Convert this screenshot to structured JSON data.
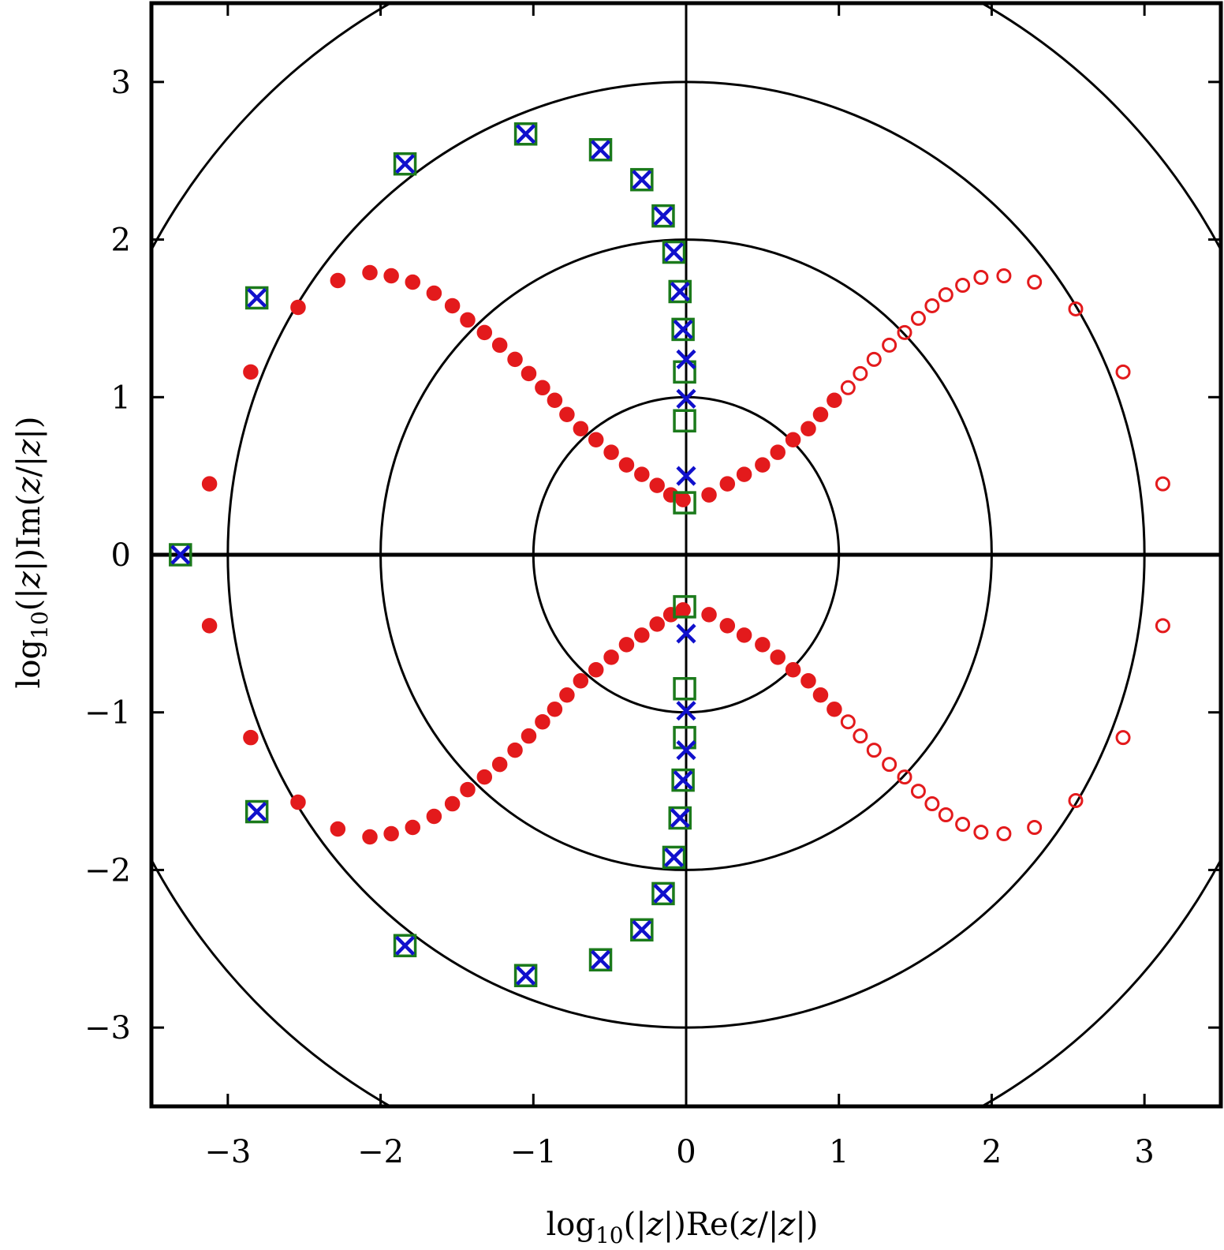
{
  "chart_data": {
    "type": "scatter",
    "title": "",
    "xlabel": "log10(|z|)Re(z/|z|)",
    "ylabel": "log10(|z|)Im(z/|z|)",
    "xlim": [
      -3.5,
      3.5
    ],
    "ylim": [
      -3.5,
      3.5
    ],
    "xticks": [
      -3,
      -2,
      -1,
      0,
      1,
      2,
      3
    ],
    "yticks": [
      -3,
      -2,
      -1,
      0,
      1,
      2,
      3
    ],
    "xtick_labels": [
      "−3",
      "−2",
      "−1",
      "0",
      "1",
      "2",
      "3"
    ],
    "ytick_labels": [
      "−3",
      "−2",
      "−1",
      "0",
      "1",
      "2",
      "3"
    ],
    "grid": false,
    "reference_circles": [
      1,
      2,
      3,
      4
    ],
    "colors": {
      "filled_circles": "#e31a1c",
      "open_circles": "#e31a1c",
      "squares": "#1b7a1b",
      "crosses": "#1010cc",
      "axes": "#000000"
    },
    "series": [
      {
        "marker": "filled-circle",
        "color": "#e31a1c",
        "points": [
          [
            -3.12,
            0.45
          ],
          [
            -2.85,
            1.16
          ],
          [
            -2.54,
            1.57
          ],
          [
            -2.28,
            1.74
          ],
          [
            -2.07,
            1.79
          ],
          [
            -1.93,
            1.77
          ],
          [
            -1.79,
            1.73
          ],
          [
            -1.65,
            1.66
          ],
          [
            -1.53,
            1.58
          ],
          [
            -1.43,
            1.49
          ],
          [
            -1.32,
            1.41
          ],
          [
            -1.22,
            1.33
          ],
          [
            -1.12,
            1.24
          ],
          [
            -1.03,
            1.15
          ],
          [
            -0.94,
            1.06
          ],
          [
            -0.86,
            0.98
          ],
          [
            -0.78,
            0.89
          ],
          [
            -0.69,
            0.8
          ],
          [
            -0.59,
            0.73
          ],
          [
            -0.49,
            0.65
          ],
          [
            -0.39,
            0.57
          ],
          [
            -0.29,
            0.51
          ],
          [
            -0.19,
            0.44
          ],
          [
            -0.1,
            0.38
          ],
          [
            -0.02,
            0.35
          ],
          [
            0.15,
            0.38
          ],
          [
            0.27,
            0.45
          ],
          [
            0.38,
            0.51
          ],
          [
            0.5,
            0.57
          ],
          [
            0.6,
            0.65
          ],
          [
            0.7,
            0.73
          ],
          [
            0.8,
            0.8
          ],
          [
            0.88,
            0.89
          ],
          [
            0.97,
            0.98
          ],
          [
            -3.12,
            -0.45
          ],
          [
            -2.85,
            -1.16
          ],
          [
            -2.54,
            -1.57
          ],
          [
            -2.28,
            -1.74
          ],
          [
            -2.07,
            -1.79
          ],
          [
            -1.93,
            -1.77
          ],
          [
            -1.79,
            -1.73
          ],
          [
            -1.65,
            -1.66
          ],
          [
            -1.53,
            -1.58
          ],
          [
            -1.43,
            -1.49
          ],
          [
            -1.32,
            -1.41
          ],
          [
            -1.22,
            -1.33
          ],
          [
            -1.12,
            -1.24
          ],
          [
            -1.03,
            -1.15
          ],
          [
            -0.94,
            -1.06
          ],
          [
            -0.86,
            -0.98
          ],
          [
            -0.78,
            -0.89
          ],
          [
            -0.69,
            -0.8
          ],
          [
            -0.59,
            -0.73
          ],
          [
            -0.49,
            -0.65
          ],
          [
            -0.39,
            -0.57
          ],
          [
            -0.29,
            -0.51
          ],
          [
            -0.19,
            -0.44
          ],
          [
            -0.1,
            -0.38
          ],
          [
            -0.02,
            -0.35
          ],
          [
            0.15,
            -0.38
          ],
          [
            0.27,
            -0.45
          ],
          [
            0.38,
            -0.51
          ],
          [
            0.5,
            -0.57
          ],
          [
            0.6,
            -0.65
          ],
          [
            0.7,
            -0.73
          ],
          [
            0.8,
            -0.8
          ],
          [
            0.88,
            -0.89
          ],
          [
            0.97,
            -0.98
          ]
        ]
      },
      {
        "marker": "open-circle",
        "color": "#e31a1c",
        "points": [
          [
            1.06,
            1.06
          ],
          [
            1.14,
            1.15
          ],
          [
            1.23,
            1.24
          ],
          [
            1.33,
            1.33
          ],
          [
            1.43,
            1.41
          ],
          [
            1.52,
            1.5
          ],
          [
            1.61,
            1.58
          ],
          [
            1.7,
            1.65
          ],
          [
            1.81,
            1.71
          ],
          [
            1.93,
            1.76
          ],
          [
            2.08,
            1.77
          ],
          [
            2.28,
            1.73
          ],
          [
            2.55,
            1.56
          ],
          [
            2.86,
            1.16
          ],
          [
            3.12,
            0.45
          ],
          [
            1.06,
            -1.06
          ],
          [
            1.14,
            -1.15
          ],
          [
            1.23,
            -1.24
          ],
          [
            1.33,
            -1.33
          ],
          [
            1.43,
            -1.41
          ],
          [
            1.52,
            -1.5
          ],
          [
            1.61,
            -1.58
          ],
          [
            1.7,
            -1.65
          ],
          [
            1.81,
            -1.71
          ],
          [
            1.93,
            -1.76
          ],
          [
            2.08,
            -1.77
          ],
          [
            2.28,
            -1.73
          ],
          [
            2.55,
            -1.56
          ],
          [
            2.86,
            -1.16
          ],
          [
            3.12,
            -0.45
          ]
        ]
      },
      {
        "marker": "open-square",
        "color": "#1b7a1b",
        "points": [
          [
            -3.31,
            0.0
          ],
          [
            -2.81,
            1.63
          ],
          [
            -1.84,
            2.48
          ],
          [
            -1.05,
            2.67
          ],
          [
            -0.56,
            2.57
          ],
          [
            -0.29,
            2.38
          ],
          [
            -0.15,
            2.15
          ],
          [
            -0.08,
            1.92
          ],
          [
            -0.04,
            1.67
          ],
          [
            -0.02,
            1.43
          ],
          [
            -0.01,
            1.16
          ],
          [
            -0.01,
            0.85
          ],
          [
            -0.01,
            0.33
          ],
          [
            -2.81,
            -1.63
          ],
          [
            -1.84,
            -2.48
          ],
          [
            -1.05,
            -2.67
          ],
          [
            -0.56,
            -2.57
          ],
          [
            -0.29,
            -2.38
          ],
          [
            -0.15,
            -2.15
          ],
          [
            -0.08,
            -1.92
          ],
          [
            -0.04,
            -1.67
          ],
          [
            -0.02,
            -1.43
          ],
          [
            -0.01,
            -1.16
          ],
          [
            -0.01,
            -0.85
          ],
          [
            -0.01,
            -0.33
          ]
        ]
      },
      {
        "marker": "x",
        "color": "#1010cc",
        "points": [
          [
            -3.31,
            0.0
          ],
          [
            -2.81,
            1.63
          ],
          [
            -1.84,
            2.48
          ],
          [
            -1.05,
            2.67
          ],
          [
            -0.56,
            2.57
          ],
          [
            -0.29,
            2.38
          ],
          [
            -0.15,
            2.15
          ],
          [
            -0.08,
            1.92
          ],
          [
            -0.04,
            1.67
          ],
          [
            -0.02,
            1.43
          ],
          [
            0.0,
            1.24
          ],
          [
            0.0,
            0.99
          ],
          [
            0.0,
            0.5
          ],
          [
            -2.81,
            -1.63
          ],
          [
            -1.84,
            -2.48
          ],
          [
            -1.05,
            -2.67
          ],
          [
            -0.56,
            -2.57
          ],
          [
            -0.29,
            -2.38
          ],
          [
            -0.15,
            -2.15
          ],
          [
            -0.08,
            -1.92
          ],
          [
            -0.04,
            -1.67
          ],
          [
            -0.02,
            -1.43
          ],
          [
            0.0,
            -1.24
          ],
          [
            0.0,
            -0.99
          ],
          [
            0.0,
            -0.5
          ]
        ]
      }
    ]
  }
}
